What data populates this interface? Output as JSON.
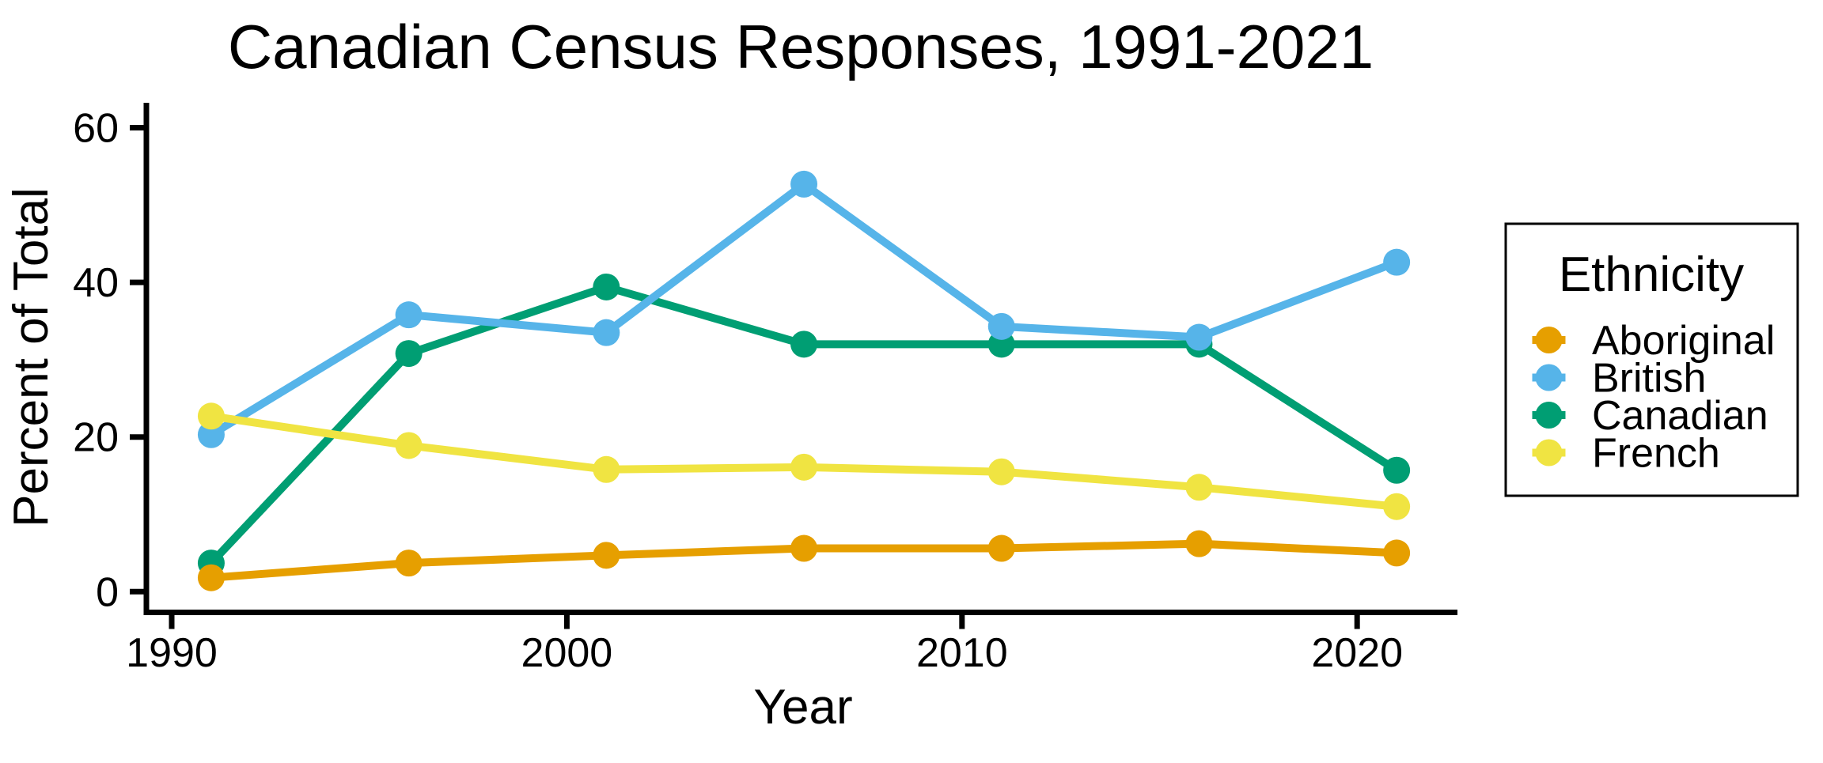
{
  "title": "Canadian Census Responses, 1991-2021",
  "axes": {
    "x": {
      "label": "Year",
      "ticks": [
        "1990",
        "2000",
        "2010",
        "2020"
      ]
    },
    "y": {
      "label": "Percent of Total",
      "ticks": [
        "0",
        "20",
        "40",
        "60"
      ]
    }
  },
  "legend": {
    "title": "Ethnicity",
    "items": [
      {
        "label": "Aboriginal",
        "color": "#E69F00"
      },
      {
        "label": "British",
        "color": "#56B4E9"
      },
      {
        "label": "Canadian",
        "color": "#009E73"
      },
      {
        "label": "French",
        "color": "#F0E442"
      }
    ]
  },
  "chart_data": {
    "type": "line",
    "title": "Canadian Census Responses, 1991-2021",
    "xlabel": "Year",
    "ylabel": "Percent of Total",
    "x": [
      1991,
      1996,
      2001,
      2006,
      2011,
      2016,
      2021
    ],
    "series": [
      {
        "name": "Aboriginal",
        "color": "#E69F00",
        "values": [
          1.8,
          3.7,
          4.7,
          5.6,
          5.6,
          6.2,
          5.0
        ]
      },
      {
        "name": "British",
        "color": "#56B4E9",
        "values": [
          20.3,
          35.8,
          33.5,
          52.7,
          34.3,
          32.9,
          42.6
        ]
      },
      {
        "name": "Canadian",
        "color": "#009E73",
        "values": [
          3.7,
          30.8,
          39.4,
          32.0,
          32.0,
          32.0,
          15.7
        ]
      },
      {
        "name": "French",
        "color": "#F0E442",
        "values": [
          22.7,
          18.9,
          15.8,
          16.1,
          15.5,
          13.5,
          11.0
        ]
      }
    ],
    "x_ticks": [
      1990,
      2000,
      2010,
      2020
    ],
    "y_ticks": [
      0,
      20,
      40,
      60
    ],
    "xlim": [
      1989.3,
      2022.5
    ],
    "ylim": [
      0,
      63.2
    ],
    "grid": false,
    "legend_position": "right",
    "marker": "circle"
  }
}
